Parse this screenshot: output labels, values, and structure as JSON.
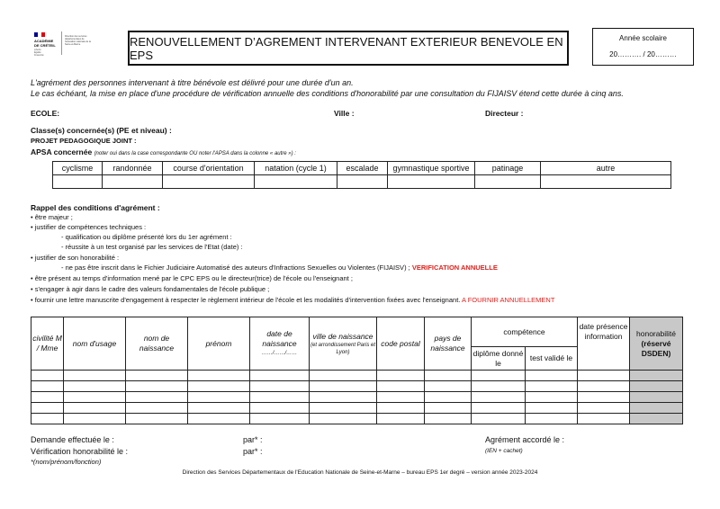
{
  "logo": {
    "institution": "ACADÉMIE DE CRÉTEIL",
    "motto": "Liberté Égalité Fraternité",
    "service": "Direction des services départementaux de l'éducation nationale de la Seine-et-Marne",
    "flag_colors": [
      "#000091",
      "#ffffff",
      "#e1000f"
    ]
  },
  "title": "RENOUVELLEMENT D’AGREMENT INTERVENANT EXTERIEUR BENEVOLE EN EPS",
  "year_box": {
    "label": "Année scolaire",
    "value": "20………. / 20………"
  },
  "intro": [
    "L'agrément des personnes intervenant à titre bénévole est délivré pour une durée d'un an.",
    "Le cas échéant, la mise en place d'une procédure de vérification annuelle des conditions d'honorabilité par une consultation du FIJAISV étend cette durée à cinq ans."
  ],
  "fields": {
    "ecole": "ECOLE:",
    "ville": "Ville :",
    "directeur": "Directeur :",
    "classes": "Classe(s) concernée(s) (PE et niveau) :",
    "projet": "PROJET PEDAGOGIQUE JOINT :",
    "apsa": "APSA concernée",
    "apsa_note": "(noter oui dans la case correspondante OU noter l'APSA dans la colonne « autre ») :"
  },
  "apsa_columns": [
    "cyclisme",
    "randonnée",
    "course d'orientation",
    "natation (cycle 1)",
    "escalade",
    "gymnastique sportive",
    "patinage",
    "autre"
  ],
  "rappel": {
    "title": "Rappel des conditions d'agrément :",
    "items": [
      {
        "text": "• être majeur ;"
      },
      {
        "text": "• justifier de compétences techniques :"
      },
      {
        "text": "- qualification ou diplôme présenté lors du 1er agrément :",
        "indent": true
      },
      {
        "text": "- réussite à un test organisé par les services de l'Etat (date) :",
        "indent": true
      },
      {
        "text": "• justifier de son honorabilité :"
      },
      {
        "text": "- ne pas être inscrit dans le Fichier Judiciaire Automatisé des auteurs d'Infractions Sexuelles ou Violentes (FIJAISV) ; ",
        "indent": true,
        "red": "VERIFICATION ANNUELLE"
      },
      {
        "text": "• être présent au temps d'information mené par le CPC EPS ou le directeur(trice) de l'école ou l'enseignant ;"
      },
      {
        "text": "• s'engager à agir dans le cadre des valeurs fondamentales de l'école publique ;"
      },
      {
        "text": "• fournir une lettre manuscrite d'engagement à respecter le règlement intérieur de l'école et les modalités d'intervention fixées avec l'enseignant. ",
        "red": "A FOURNIR ANNUELLEMENT"
      }
    ]
  },
  "table": {
    "headers": {
      "civilite": "civilité M / Mme",
      "nom_usage": "nom d'usage",
      "nom_naissance": "nom de naissance",
      "prenom": "prénom",
      "date_naissance": "date de naissance",
      "date_format": "……/……/……",
      "ville": "ville de naissance",
      "ville_note": "(et arrondissement Paris et Lyon)",
      "code_postal": "code postal",
      "pays": "pays de naissance",
      "competence": "compétence",
      "diplome": "diplôme donné le",
      "test": "test validé le",
      "date_presence": "date présence information",
      "honorabilite": "honorabilité",
      "honorabilite_note": "(réservé DSDEN)"
    },
    "empty_rows": 5,
    "reserved_color": "#c8c8c8"
  },
  "footer": {
    "demande": "Demande effectuée le :",
    "par1": "par* :",
    "agrement": "Agrément accordé le :",
    "verification": "Vérification honorabilité le :",
    "par2": "par* :",
    "ien": "(IEN + cachet)",
    "note": "*(nom/prénom/fonction)",
    "credit": "Direction des Services Départementaux de l'Education Nationale de Seine-et-Marne – bureau EPS 1er degré – version année 2023-2024"
  }
}
